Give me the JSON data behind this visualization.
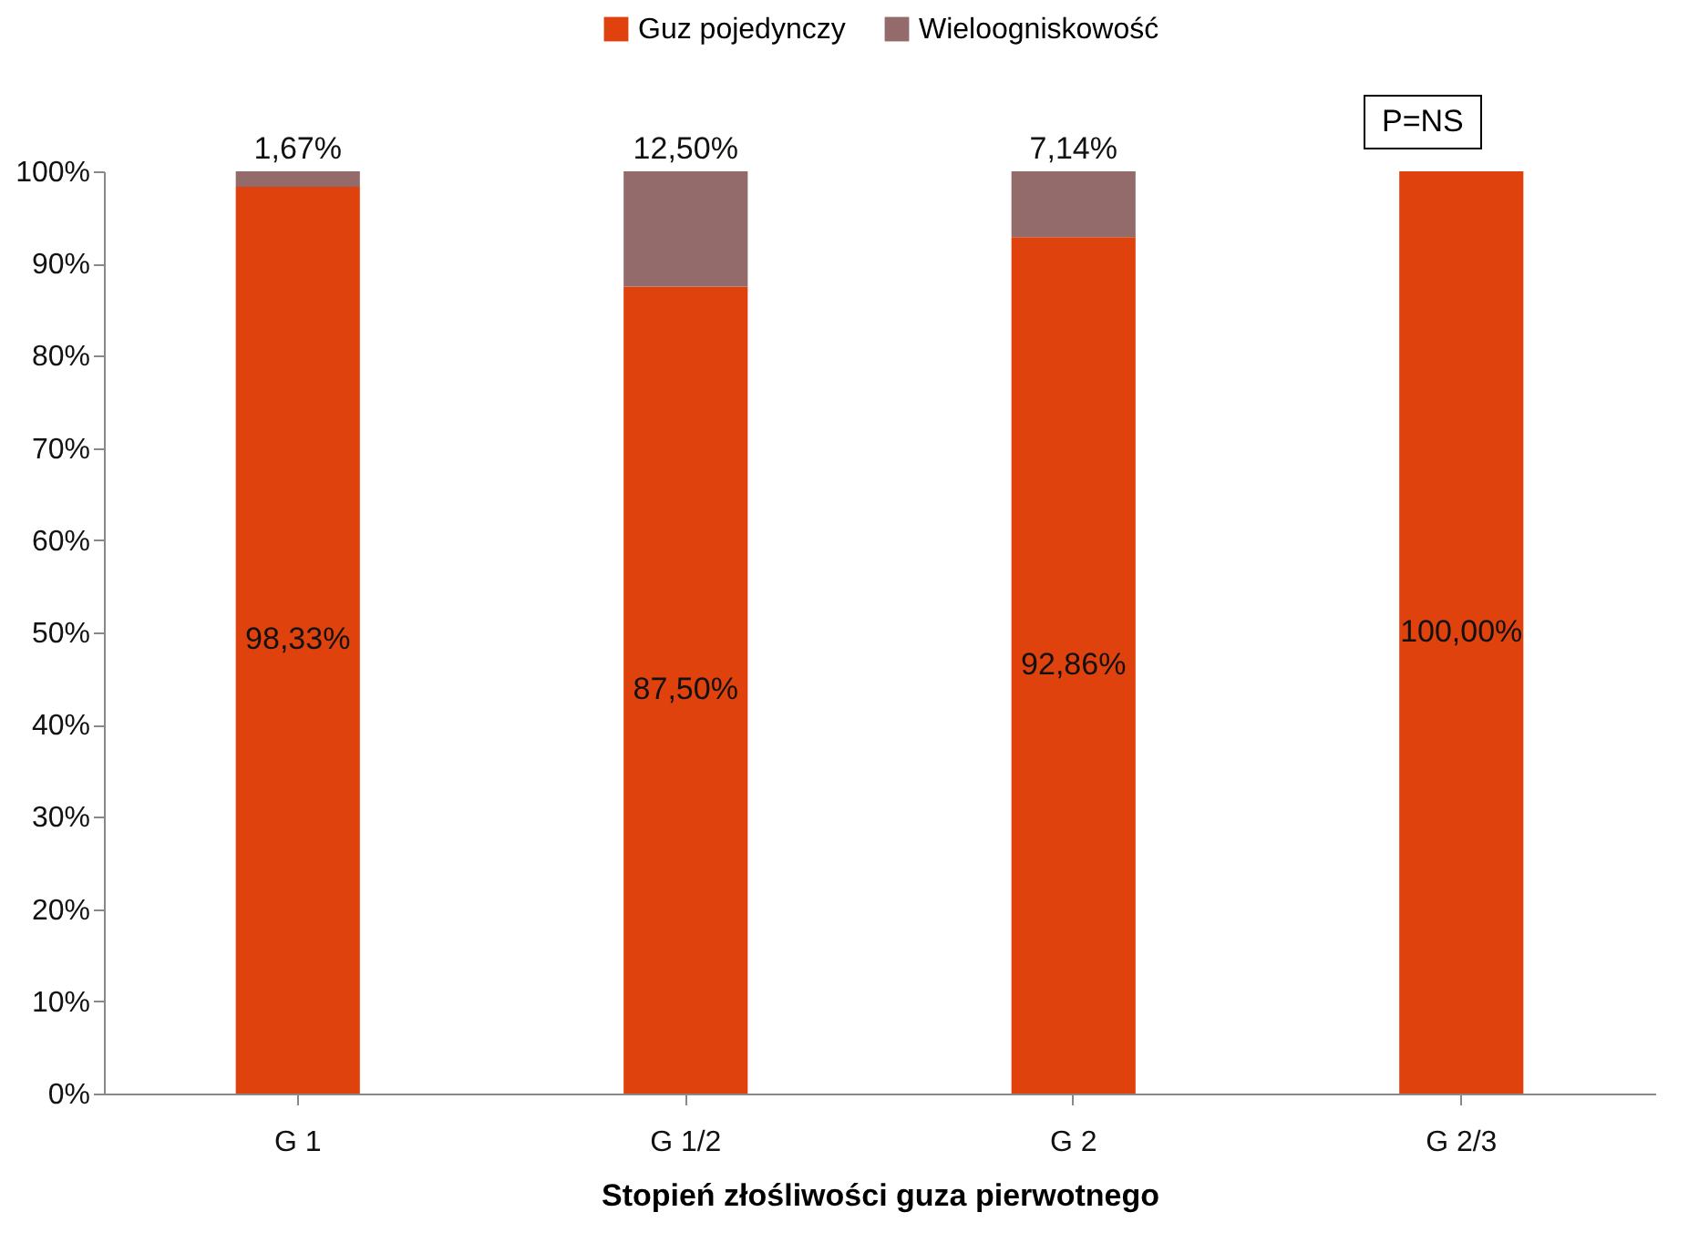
{
  "chart_data": {
    "type": "bar",
    "stacked": true,
    "xlabel": "Stopień złośliwości guza pierwotnego",
    "categories": [
      "G 1",
      "G 1/2",
      "G 2",
      "G 2/3"
    ],
    "series": [
      {
        "name": "Guz pojedynczy",
        "color": "#e0420e",
        "values": [
          98.33,
          87.5,
          92.86,
          100
        ],
        "value_labels": [
          "98,33%",
          "87,50%",
          "92,86%",
          "100,00%"
        ]
      },
      {
        "name": "Wieloogniskowość",
        "color": "#946b6b",
        "values": [
          1.67,
          12.5,
          7.14,
          0
        ],
        "value_labels": [
          "1,67%",
          "12,50%",
          "7,14%",
          null
        ]
      }
    ],
    "ylim": [
      0,
      100
    ],
    "yticks": [
      {
        "value": 0,
        "label": "0%"
      },
      {
        "value": 10,
        "label": "10%"
      },
      {
        "value": 20,
        "label": "20%"
      },
      {
        "value": 30,
        "label": "30%"
      },
      {
        "value": 40,
        "label": "40%"
      },
      {
        "value": 50,
        "label": "50%"
      },
      {
        "value": 60,
        "label": "60%"
      },
      {
        "value": 70,
        "label": "70%"
      },
      {
        "value": 80,
        "label": "80%"
      },
      {
        "value": 90,
        "label": "90%"
      },
      {
        "value": 100,
        "label": "100%"
      }
    ],
    "grid": false,
    "legend": "top",
    "annotations": [
      "P=NS"
    ]
  }
}
